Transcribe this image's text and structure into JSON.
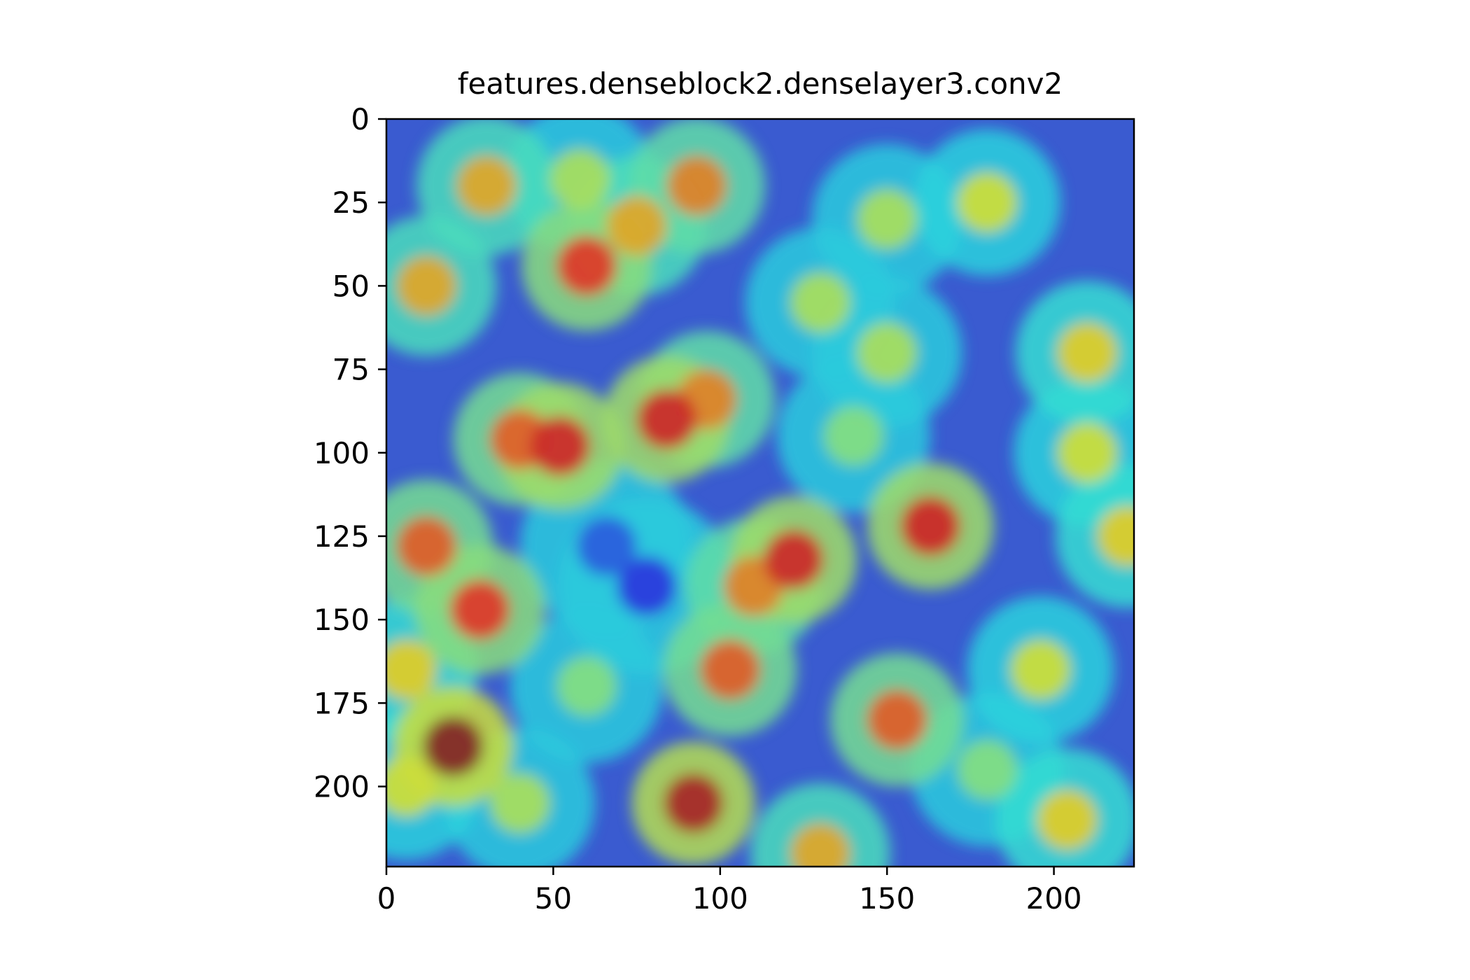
{
  "chart_data": {
    "type": "heatmap",
    "title": "features.denseblock2.denselayer3.conv2",
    "xlabel": "",
    "ylabel": "",
    "xlim": [
      0,
      224
    ],
    "ylim": [
      224,
      0
    ],
    "x_ticks": [
      0,
      50,
      100,
      150,
      200
    ],
    "y_ticks": [
      0,
      25,
      50,
      75,
      100,
      125,
      150,
      175,
      200
    ],
    "colormap": "jet",
    "overlay": "Grad-CAM style activation heatmap blended over an image of a dog",
    "grid": false,
    "legend": "none",
    "hotspots": [
      {
        "x": 20,
        "y": 188,
        "intensity": 1.0
      },
      {
        "x": 92,
        "y": 205,
        "intensity": 0.95
      },
      {
        "x": 52,
        "y": 98,
        "intensity": 0.9
      },
      {
        "x": 84,
        "y": 90,
        "intensity": 0.9
      },
      {
        "x": 163,
        "y": 122,
        "intensity": 0.9
      },
      {
        "x": 122,
        "y": 132,
        "intensity": 0.9
      },
      {
        "x": 60,
        "y": 44,
        "intensity": 0.85
      },
      {
        "x": 28,
        "y": 147,
        "intensity": 0.85
      },
      {
        "x": 12,
        "y": 128,
        "intensity": 0.8
      },
      {
        "x": 40,
        "y": 96,
        "intensity": 0.8
      },
      {
        "x": 96,
        "y": 84,
        "intensity": 0.75
      },
      {
        "x": 103,
        "y": 165,
        "intensity": 0.8
      },
      {
        "x": 153,
        "y": 180,
        "intensity": 0.8
      },
      {
        "x": 110,
        "y": 140,
        "intensity": 0.75
      },
      {
        "x": 93,
        "y": 20,
        "intensity": 0.75
      },
      {
        "x": 75,
        "y": 32,
        "intensity": 0.7
      },
      {
        "x": 30,
        "y": 20,
        "intensity": 0.7
      },
      {
        "x": 12,
        "y": 50,
        "intensity": 0.7
      },
      {
        "x": 58,
        "y": 18,
        "intensity": 0.55
      },
      {
        "x": 210,
        "y": 70,
        "intensity": 0.65
      },
      {
        "x": 210,
        "y": 100,
        "intensity": 0.6
      },
      {
        "x": 222,
        "y": 125,
        "intensity": 0.65
      },
      {
        "x": 204,
        "y": 210,
        "intensity": 0.65
      },
      {
        "x": 196,
        "y": 165,
        "intensity": 0.6
      },
      {
        "x": 150,
        "y": 30,
        "intensity": 0.55
      },
      {
        "x": 180,
        "y": 25,
        "intensity": 0.6
      },
      {
        "x": 130,
        "y": 55,
        "intensity": 0.55
      },
      {
        "x": 150,
        "y": 70,
        "intensity": 0.55
      },
      {
        "x": 140,
        "y": 95,
        "intensity": 0.5
      },
      {
        "x": 6,
        "y": 200,
        "intensity": 0.6
      },
      {
        "x": 6,
        "y": 165,
        "intensity": 0.65
      },
      {
        "x": 40,
        "y": 205,
        "intensity": 0.55
      },
      {
        "x": 60,
        "y": 170,
        "intensity": 0.5
      },
      {
        "x": 130,
        "y": 220,
        "intensity": 0.7
      },
      {
        "x": 180,
        "y": 195,
        "intensity": 0.5
      },
      {
        "x": 66,
        "y": 128,
        "intensity": 0.2
      },
      {
        "x": 78,
        "y": 140,
        "intensity": 0.15
      }
    ]
  }
}
